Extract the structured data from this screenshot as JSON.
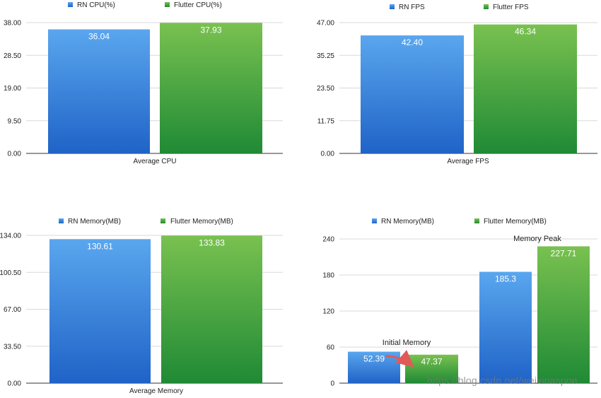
{
  "colors": {
    "rn_top": "#5aa6ee",
    "rn_bottom": "#1f63c7",
    "flutter_top": "#79c150",
    "flutter_bottom": "#1f8a35",
    "grid": "#d9d9d9",
    "axis": "#333333",
    "arrow": "#e05a57"
  },
  "watermark": "https://blog.csdn.net/weixinaspne",
  "chart_data": [
    {
      "type": "bar",
      "categories": [
        "Average CPU"
      ],
      "series": [
        {
          "name": "RN CPU(%)",
          "values": [
            36.04
          ],
          "labels": [
            "36.04"
          ]
        },
        {
          "name": "Flutter CPU(%)",
          "values": [
            37.93
          ],
          "labels": [
            "37.93"
          ]
        }
      ],
      "ylim": [
        0,
        38
      ],
      "yticks": [
        "0.00",
        "9.50",
        "19.00",
        "28.50",
        "38.00"
      ],
      "legend": "top",
      "grid": true,
      "annotations": []
    },
    {
      "type": "bar",
      "categories": [
        "Average FPS"
      ],
      "series": [
        {
          "name": "RN FPS",
          "values": [
            42.4
          ],
          "labels": [
            "42.40"
          ]
        },
        {
          "name": "Flutter FPS",
          "values": [
            46.34
          ],
          "labels": [
            "46.34"
          ]
        }
      ],
      "ylim": [
        0,
        47
      ],
      "yticks": [
        "0.00",
        "11.75",
        "23.50",
        "35.25",
        "47.00"
      ],
      "legend": "top",
      "grid": true,
      "annotations": []
    },
    {
      "type": "bar",
      "categories": [
        "Average Memory"
      ],
      "series": [
        {
          "name": "RN Memory(MB)",
          "values": [
            130.61
          ],
          "labels": [
            "130.61"
          ]
        },
        {
          "name": "Flutter Memory(MB)",
          "values": [
            133.83
          ],
          "labels": [
            "133.83"
          ]
        }
      ],
      "ylim": [
        0,
        134
      ],
      "yticks": [
        "0.00",
        "33.50",
        "67.00",
        "100.50",
        "134.00"
      ],
      "legend": "top",
      "grid": true,
      "annotations": []
    },
    {
      "type": "bar",
      "categories": [
        "",
        ""
      ],
      "series": [
        {
          "name": "RN Memory(MB)",
          "values": [
            52.39,
            185.3
          ],
          "labels": [
            "52.39",
            "185.3"
          ]
        },
        {
          "name": "Flutter Memory(MB)",
          "values": [
            47.37,
            227.71
          ],
          "labels": [
            "47.37",
            "227.71"
          ]
        }
      ],
      "ylim": [
        0,
        240
      ],
      "yticks": [
        "0",
        "60",
        "120",
        "180",
        "240"
      ],
      "legend": "top",
      "grid": true,
      "annotations": [
        "Initial Memory",
        "Memory Peak"
      ]
    }
  ]
}
